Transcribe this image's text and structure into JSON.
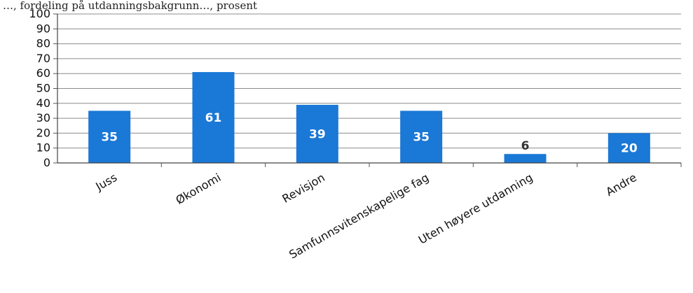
{
  "caption": "…, fordeling på utdanningsbakgrunn…, prosent",
  "chart_data": {
    "type": "bar",
    "categories": [
      "Juss",
      "Økonomi",
      "Revisjon",
      "Samfunnsvitenskapelige fag",
      "Uten høyere utdanning",
      "Andre"
    ],
    "values": [
      35,
      61,
      39,
      35,
      6,
      20
    ],
    "ylim": [
      0,
      100
    ],
    "yticks": [
      0,
      10,
      20,
      30,
      40,
      50,
      60,
      70,
      80,
      90,
      100
    ],
    "grid": true,
    "bar_color": "#1a78d6",
    "inside_label_color": "#ffffff",
    "outside_label_color": "#333333"
  }
}
